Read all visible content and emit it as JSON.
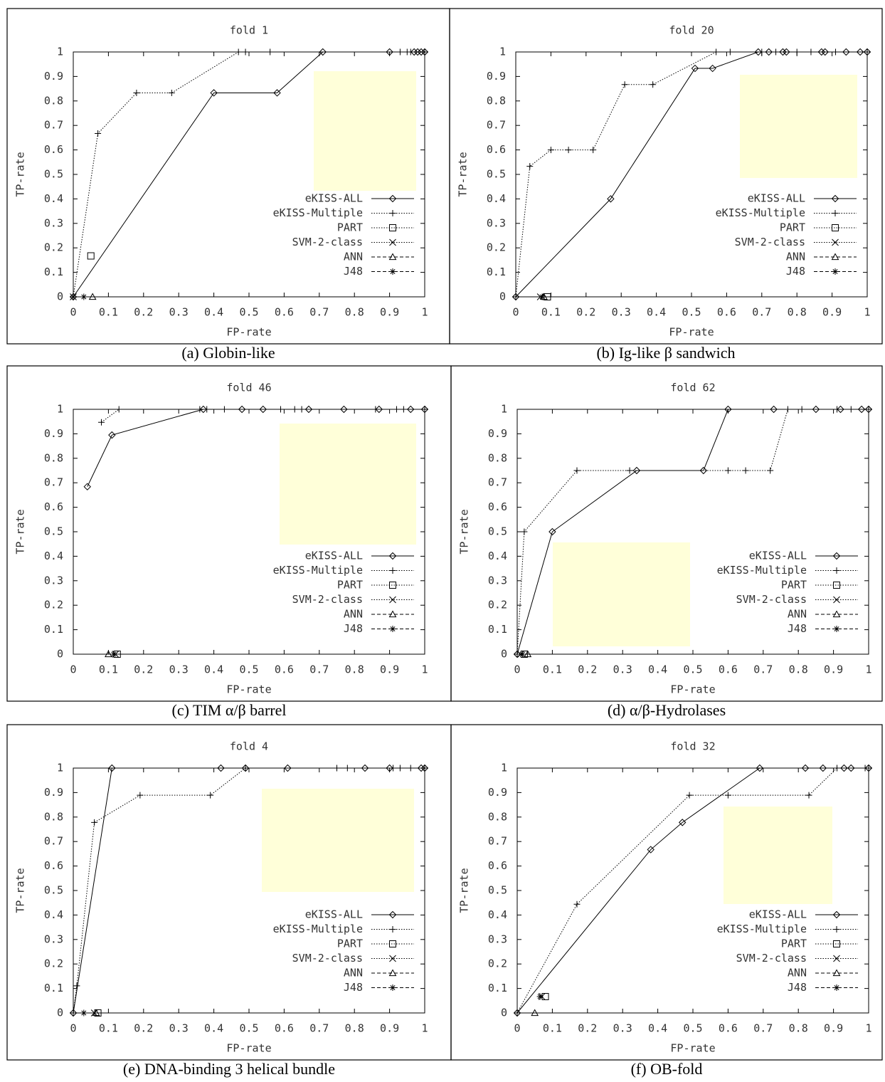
{
  "chart_data": [
    {
      "type": "line",
      "title": "fold 1",
      "caption": "(a) Globin-like",
      "x_label": "FP-rate",
      "y_label": "TP-rate",
      "xlim": [
        0,
        1
      ],
      "ylim": [
        0,
        1
      ],
      "xticks": [
        0,
        0.1,
        0.2,
        0.3,
        0.4,
        0.5,
        0.6,
        0.7,
        0.8,
        0.9,
        1
      ],
      "yticks": [
        0,
        0.1,
        0.2,
        0.3,
        0.4,
        0.5,
        0.6,
        0.7,
        0.8,
        0.9,
        1
      ],
      "legend": "lower right",
      "series": [
        {
          "name": "eKISS-ALL",
          "color": "#000000",
          "marker": "diamond",
          "dash": "solid",
          "x": [
            0,
            0.4,
            0.58,
            0.71,
            0.9,
            0.97,
            0.98,
            0.99,
            1
          ],
          "values": [
            0,
            0.833,
            0.833,
            1,
            1,
            1,
            1,
            1,
            1
          ]
        },
        {
          "name": "eKISS-Multiple",
          "color": "#000000",
          "marker": "plus",
          "dash": "dotted",
          "x": [
            0,
            0.07,
            0.18,
            0.28,
            0.47,
            0.49,
            0.56,
            0.93,
            0.95,
            0.96,
            1
          ],
          "values": [
            0,
            0.667,
            0.833,
            0.833,
            1,
            1,
            1,
            1,
            1,
            1,
            1
          ]
        },
        {
          "name": "PART",
          "color": "#000000",
          "marker": "square",
          "dash": "dotted",
          "x": [
            0.05
          ],
          "values": [
            0.167
          ]
        },
        {
          "name": "SVM-2-class",
          "color": "#000000",
          "marker": "cross",
          "dash": "dotted",
          "x": [
            0
          ],
          "values": [
            0
          ]
        },
        {
          "name": "ANN",
          "color": "#000000",
          "marker": "triangle",
          "dash": "dashed",
          "x": [
            0.055
          ],
          "values": [
            0
          ]
        },
        {
          "name": "J48",
          "color": "#000000",
          "marker": "star",
          "dash": "dashed",
          "x": [
            0.03
          ],
          "values": [
            0
          ]
        }
      ]
    },
    {
      "type": "line",
      "title": "fold 20",
      "caption": "(b) Ig-like β sandwich",
      "x_label": "FP-rate",
      "y_label": "TP-rate",
      "xlim": [
        0,
        1
      ],
      "ylim": [
        0,
        1
      ],
      "xticks": [
        0,
        0.1,
        0.2,
        0.3,
        0.4,
        0.5,
        0.6,
        0.7,
        0.8,
        0.9,
        1
      ],
      "yticks": [
        0,
        0.1,
        0.2,
        0.3,
        0.4,
        0.5,
        0.6,
        0.7,
        0.8,
        0.9,
        1
      ],
      "legend": "lower right",
      "series": [
        {
          "name": "eKISS-ALL",
          "color": "#000000",
          "marker": "diamond",
          "dash": "solid",
          "x": [
            0,
            0.27,
            0.51,
            0.56,
            0.69,
            0.72,
            0.76,
            0.77,
            0.87,
            0.88,
            0.94,
            0.98,
            1
          ],
          "values": [
            0,
            0.4,
            0.933,
            0.933,
            1,
            1,
            1,
            1,
            1,
            1,
            1,
            1,
            1
          ]
        },
        {
          "name": "eKISS-Multiple",
          "color": "#000000",
          "marker": "plus",
          "dash": "dotted",
          "x": [
            0,
            0.04,
            0.1,
            0.15,
            0.22,
            0.31,
            0.39,
            0.57,
            0.61,
            0.7,
            0.74,
            0.8,
            0.84,
            0.91,
            1
          ],
          "values": [
            0,
            0.533,
            0.6,
            0.6,
            0.6,
            0.867,
            0.867,
            1,
            1,
            1,
            1,
            1,
            1,
            1,
            1
          ]
        },
        {
          "name": "PART",
          "color": "#000000",
          "marker": "square",
          "dash": "dotted",
          "x": [
            0.09
          ],
          "values": [
            0
          ]
        },
        {
          "name": "SVM-2-class",
          "color": "#000000",
          "marker": "cross",
          "dash": "dotted",
          "x": [
            0.07
          ],
          "values": [
            0
          ]
        },
        {
          "name": "ANN",
          "color": "#000000",
          "marker": "triangle",
          "dash": "dashed",
          "x": [
            0.08
          ],
          "values": [
            0
          ]
        },
        {
          "name": "J48",
          "color": "#000000",
          "marker": "star",
          "dash": "dashed",
          "x": [
            0.075
          ],
          "values": [
            0
          ]
        }
      ]
    },
    {
      "type": "line",
      "title": "fold 46",
      "caption": "(c) TIM α/β barrel",
      "x_label": "FP-rate",
      "y_label": "TP-rate",
      "xlim": [
        0,
        1
      ],
      "ylim": [
        0,
        1
      ],
      "xticks": [
        0,
        0.1,
        0.2,
        0.3,
        0.4,
        0.5,
        0.6,
        0.7,
        0.8,
        0.9,
        1
      ],
      "yticks": [
        0,
        0.1,
        0.2,
        0.3,
        0.4,
        0.5,
        0.6,
        0.7,
        0.8,
        0.9,
        1
      ],
      "legend": "lower right",
      "series": [
        {
          "name": "eKISS-ALL",
          "color": "#000000",
          "marker": "diamond",
          "dash": "solid",
          "x": [
            0.04,
            0.11,
            0.37,
            0.48,
            0.54,
            0.67,
            0.77,
            0.87,
            0.96,
            1
          ],
          "values": [
            0.684,
            0.895,
            1,
            1,
            1,
            1,
            1,
            1,
            1,
            1
          ]
        },
        {
          "name": "eKISS-Multiple",
          "color": "#000000",
          "marker": "plus",
          "dash": "dotted",
          "x": [
            0.08,
            0.13,
            0.36,
            0.38,
            0.43,
            0.59,
            0.63,
            0.65,
            0.86,
            0.92,
            0.94,
            1
          ],
          "values": [
            0.947,
            1,
            1,
            1,
            1,
            1,
            1,
            1,
            1,
            1,
            1,
            1
          ]
        },
        {
          "name": "PART",
          "color": "#000000",
          "marker": "square",
          "dash": "dotted",
          "x": [
            0.125
          ],
          "values": [
            0
          ]
        },
        {
          "name": "SVM-2-class",
          "color": "#000000",
          "marker": "cross",
          "dash": "dotted",
          "x": [
            0.12
          ],
          "values": [
            0
          ]
        },
        {
          "name": "ANN",
          "color": "#000000",
          "marker": "triangle",
          "dash": "dashed",
          "x": [
            0.1
          ],
          "values": [
            0
          ]
        },
        {
          "name": "J48",
          "color": "#000000",
          "marker": "star",
          "dash": "dashed",
          "x": [
            0.115
          ],
          "values": [
            0
          ]
        }
      ]
    },
    {
      "type": "line",
      "title": "fold 62",
      "caption": "(d) α/β-Hydrolases",
      "x_label": "FP-rate",
      "y_label": "TP-rate",
      "xlim": [
        0,
        1
      ],
      "ylim": [
        0,
        1
      ],
      "xticks": [
        0,
        0.1,
        0.2,
        0.3,
        0.4,
        0.5,
        0.6,
        0.7,
        0.8,
        0.9,
        1
      ],
      "yticks": [
        0,
        0.1,
        0.2,
        0.3,
        0.4,
        0.5,
        0.6,
        0.7,
        0.8,
        0.9,
        1
      ],
      "legend": "lower right",
      "series": [
        {
          "name": "eKISS-ALL",
          "color": "#000000",
          "marker": "diamond",
          "dash": "solid",
          "x": [
            0,
            0.1,
            0.34,
            0.53,
            0.6,
            0.73,
            0.85,
            0.92,
            0.98,
            1
          ],
          "values": [
            0,
            0.5,
            0.75,
            0.75,
            1,
            1,
            1,
            1,
            1,
            1
          ]
        },
        {
          "name": "eKISS-Multiple",
          "color": "#000000",
          "marker": "plus",
          "dash": "dotted",
          "x": [
            0,
            0.02,
            0.17,
            0.32,
            0.6,
            0.65,
            0.72,
            0.77,
            0.81,
            0.91,
            0.95,
            1
          ],
          "values": [
            0,
            0.5,
            0.75,
            0.75,
            0.75,
            0.75,
            0.75,
            1,
            1,
            1,
            1,
            1
          ]
        },
        {
          "name": "PART",
          "color": "#000000",
          "marker": "square",
          "dash": "dotted",
          "x": [
            0.02
          ],
          "values": [
            0
          ]
        },
        {
          "name": "SVM-2-class",
          "color": "#000000",
          "marker": "cross",
          "dash": "dotted",
          "x": [
            0.01
          ],
          "values": [
            0
          ]
        },
        {
          "name": "ANN",
          "color": "#000000",
          "marker": "triangle",
          "dash": "dashed",
          "x": [
            0.03
          ],
          "values": [
            0
          ]
        },
        {
          "name": "J48",
          "color": "#000000",
          "marker": "star",
          "dash": "dashed",
          "x": [
            0.015
          ],
          "values": [
            0
          ]
        }
      ]
    },
    {
      "type": "line",
      "title": "fold 4",
      "caption": "(e) DNA-binding 3 helical bundle",
      "x_label": "FP-rate",
      "y_label": "TP-rate",
      "xlim": [
        0,
        1
      ],
      "ylim": [
        0,
        1
      ],
      "xticks": [
        0,
        0.1,
        0.2,
        0.3,
        0.4,
        0.5,
        0.6,
        0.7,
        0.8,
        0.9,
        1
      ],
      "yticks": [
        0,
        0.1,
        0.2,
        0.3,
        0.4,
        0.5,
        0.6,
        0.7,
        0.8,
        0.9,
        1
      ],
      "legend": "lower right",
      "series": [
        {
          "name": "eKISS-ALL",
          "color": "#000000",
          "marker": "diamond",
          "dash": "solid",
          "x": [
            0,
            0.11,
            0.42,
            0.49,
            0.61,
            0.83,
            0.9,
            0.99,
            1
          ],
          "values": [
            0,
            1,
            1,
            1,
            1,
            1,
            1,
            1,
            1
          ]
        },
        {
          "name": "eKISS-Multiple",
          "color": "#000000",
          "marker": "plus",
          "dash": "dotted",
          "x": [
            0,
            0.01,
            0.06,
            0.19,
            0.39,
            0.49,
            0.75,
            0.78,
            0.91,
            0.93,
            0.96,
            1
          ],
          "values": [
            0,
            0.111,
            0.778,
            0.889,
            0.889,
            1,
            1,
            1,
            1,
            1,
            1,
            1
          ]
        },
        {
          "name": "PART",
          "color": "#000000",
          "marker": "square",
          "dash": "dotted",
          "x": [
            0.07
          ],
          "values": [
            0
          ]
        },
        {
          "name": "SVM-2-class",
          "color": "#000000",
          "marker": "cross",
          "dash": "dotted",
          "x": [
            0.06
          ],
          "values": [
            0
          ]
        },
        {
          "name": "ANN",
          "color": "#000000",
          "marker": "triangle",
          "dash": "dashed",
          "x": [
            0.065
          ],
          "values": [
            0
          ]
        },
        {
          "name": "J48",
          "color": "#000000",
          "marker": "star",
          "dash": "dashed",
          "x": [
            0.03
          ],
          "values": [
            0
          ]
        }
      ]
    },
    {
      "type": "line",
      "title": "fold 32",
      "caption": "(f) OB-fold",
      "x_label": "FP-rate",
      "y_label": "TP-rate",
      "xlim": [
        0,
        1
      ],
      "ylim": [
        0,
        1
      ],
      "xticks": [
        0,
        0.1,
        0.2,
        0.3,
        0.4,
        0.5,
        0.6,
        0.7,
        0.8,
        0.9,
        1
      ],
      "yticks": [
        0,
        0.1,
        0.2,
        0.3,
        0.4,
        0.5,
        0.6,
        0.7,
        0.8,
        0.9,
        1
      ],
      "legend": "lower right",
      "series": [
        {
          "name": "eKISS-ALL",
          "color": "#000000",
          "marker": "diamond",
          "dash": "solid",
          "x": [
            0,
            0.38,
            0.47,
            0.69,
            0.82,
            0.87,
            0.93,
            0.95,
            1
          ],
          "values": [
            0,
            0.667,
            0.778,
            1,
            1,
            1,
            1,
            1,
            1
          ]
        },
        {
          "name": "eKISS-Multiple",
          "color": "#000000",
          "marker": "plus",
          "dash": "dotted",
          "x": [
            0,
            0.17,
            0.49,
            0.6,
            0.83,
            0.91,
            0.99,
            1
          ],
          "values": [
            0,
            0.444,
            0.889,
            0.889,
            0.889,
            1,
            1,
            1
          ]
        },
        {
          "name": "PART",
          "color": "#000000",
          "marker": "square",
          "dash": "dotted",
          "x": [
            0.08
          ],
          "values": [
            0.067
          ]
        },
        {
          "name": "SVM-2-class",
          "color": "#000000",
          "marker": "cross",
          "dash": "dotted",
          "x": [
            0.07
          ],
          "values": [
            0.067
          ]
        },
        {
          "name": "ANN",
          "color": "#000000",
          "marker": "triangle",
          "dash": "dashed",
          "x": [
            0.05
          ],
          "values": [
            0
          ]
        },
        {
          "name": "J48",
          "color": "#000000",
          "marker": "star",
          "dash": "dashed",
          "x": [
            0.065
          ],
          "values": [
            0.067
          ]
        }
      ]
    }
  ]
}
